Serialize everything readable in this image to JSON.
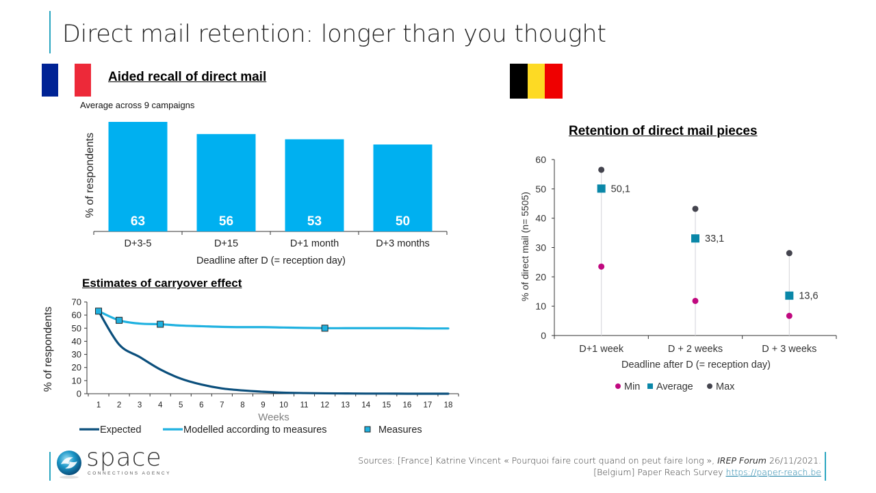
{
  "page": {
    "title": "Direct mail retention: longer than you thought",
    "accent_color": "#2aa6c0"
  },
  "france": {
    "flag_colors": [
      "#002395",
      "#ffffff",
      "#ed2939"
    ],
    "chart_title": "Aided recall of direct mail",
    "subtitle": "Average across 9 campaigns",
    "carryover_title": "Estimates of carryover effect"
  },
  "belgium": {
    "flag_colors": [
      "#000000",
      "#fdda24",
      "#ef0000"
    ],
    "chart_title": "Retention of direct mail pieces"
  },
  "footer": {
    "logo_name": "space",
    "logo_tagline": "CONNECTIONS AGENCY",
    "sources_line1_prefix": "Sources: [France] Katrine Vincent « Pourquoi faire court quand on peut faire long »,",
    "sources_line1_italic": "IREP Forum",
    "sources_line1_suffix": "26/11/2021.",
    "sources_line2_prefix": "[Belgium] Paper Reach Survey",
    "sources_line2_link": "https://paper-reach.be"
  },
  "chart_data": [
    {
      "id": "aided-recall",
      "type": "bar",
      "title": "Aided recall of direct mail",
      "subtitle": "Average across 9 campaigns",
      "categories": [
        "D+3-5",
        "D+15",
        "D+1 month",
        "D+3 months"
      ],
      "values": [
        63,
        56,
        53,
        50
      ],
      "xlabel": "Deadline after D (= reception day)",
      "ylabel": "% of respondents",
      "ylim": [
        0,
        63
      ],
      "grid": false,
      "bar_color": "#00b0f0",
      "label_color": "#ffffff"
    },
    {
      "id": "carryover",
      "type": "line",
      "title": "Estimates of carryover effect",
      "x": [
        1,
        2,
        3,
        4,
        5,
        6,
        7,
        8,
        9,
        10,
        11,
        12,
        13,
        14,
        15,
        16,
        17,
        18
      ],
      "series": [
        {
          "name": "Expected",
          "color": "#0b4f7c",
          "values": [
            63,
            37.5,
            28,
            18.5,
            11.5,
            7,
            4,
            2.5,
            1.5,
            0.8,
            0.5,
            0.3,
            0.2,
            0.1,
            0.1,
            0,
            0,
            0
          ]
        },
        {
          "name": "Modelled according to measures",
          "color": "#1fb1e0",
          "values": [
            63,
            56,
            53.5,
            53,
            52,
            51.5,
            51,
            50.8,
            50.8,
            50.5,
            50.2,
            50,
            50,
            50,
            50,
            50,
            49.8,
            49.8
          ]
        },
        {
          "name": "Measures",
          "type": "scatter",
          "color": "#1fb1e0",
          "points": [
            [
              1,
              63
            ],
            [
              2,
              56
            ],
            [
              4,
              53
            ],
            [
              12,
              50
            ]
          ]
        }
      ],
      "xlabel": "Weeks",
      "ylabel": "% of respondents",
      "ylim": [
        0,
        70
      ],
      "yticks": [
        0,
        10,
        20,
        30,
        40,
        50,
        60,
        70
      ],
      "grid": false,
      "legend": "bottom"
    },
    {
      "id": "retention",
      "type": "scatter",
      "title": "Retention of direct mail pieces",
      "categories": [
        "D+1 week",
        "D + 2 weeks",
        "D + 3 weeks"
      ],
      "series": [
        {
          "name": "Min",
          "color": "#c0087f",
          "values": [
            23.5,
            11.8,
            6.7
          ]
        },
        {
          "name": "Average",
          "color": "#0a87a8",
          "values": [
            50.1,
            33.1,
            13.6
          ],
          "labels": [
            "50,1",
            "33,1",
            "13,6"
          ]
        },
        {
          "name": "Max",
          "color": "#44444e",
          "values": [
            56.5,
            43.2,
            28.1
          ]
        }
      ],
      "xlabel": "Deadline after D (= reception day)",
      "ylabel": "% of direct mail (n= 5505)",
      "ylim": [
        0,
        60
      ],
      "yticks": [
        0,
        10,
        20,
        30,
        40,
        50,
        60
      ],
      "grid": false,
      "legend": "bottom"
    }
  ]
}
